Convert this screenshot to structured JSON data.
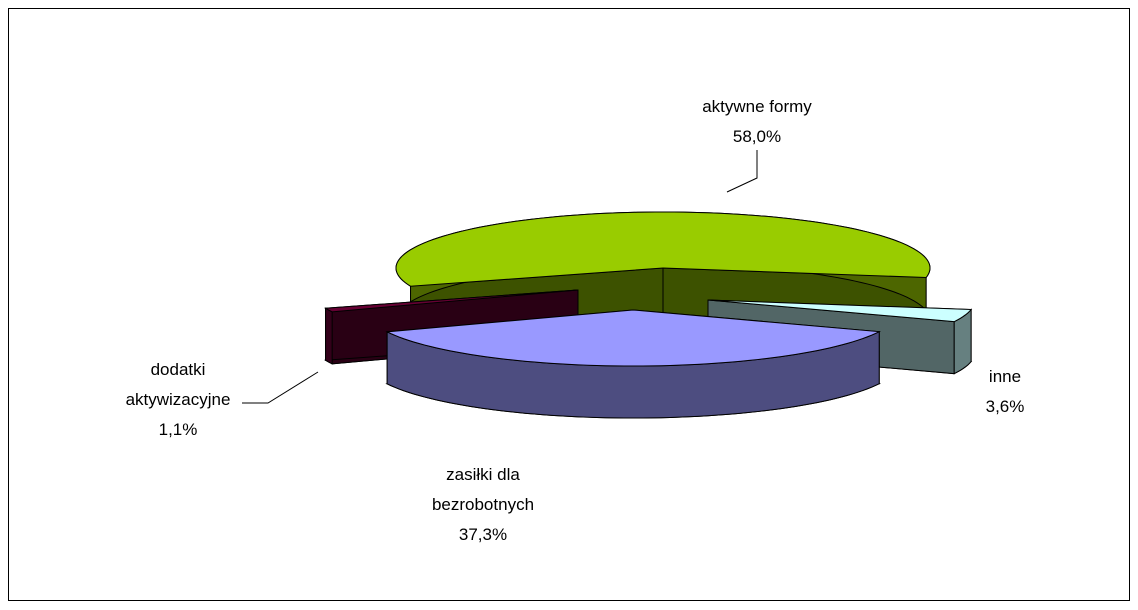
{
  "chart_data": {
    "type": "pie",
    "categories": [
      "aktywne formy",
      "inne",
      "zasiłki dla bezrobotnych",
      "dodatki aktywizacyjne"
    ],
    "values": [
      58.0,
      3.6,
      37.3,
      1.1
    ],
    "value_labels": [
      "58,0%",
      "3,6%",
      "37,3%",
      "1,1%"
    ],
    "colors": [
      "#99cc00",
      "#ccffff",
      "#9999ff",
      "#660033"
    ]
  }
}
